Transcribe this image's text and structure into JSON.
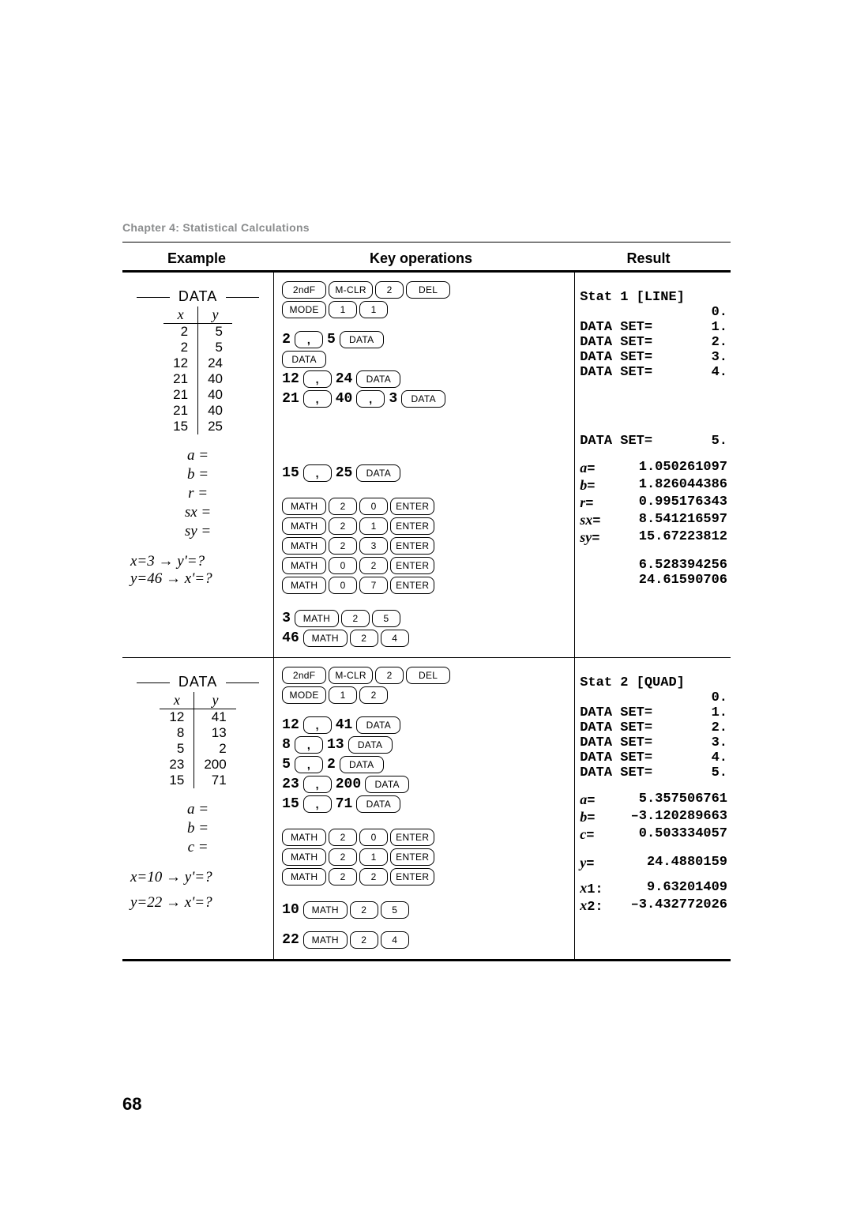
{
  "chapter": "Chapter 4: Statistical Calculations",
  "headers": {
    "example": "Example",
    "ops": "Key operations",
    "result": "Result"
  },
  "page_number": "68",
  "sec1": {
    "data_label": "DATA",
    "table": {
      "xh": "x",
      "yh": "y",
      "rows": [
        {
          "x": "2",
          "y": "5"
        },
        {
          "x": "2",
          "y": "5"
        },
        {
          "x": "12",
          "y": "24"
        },
        {
          "x": "21",
          "y": "40"
        },
        {
          "x": "21",
          "y": "40"
        },
        {
          "x": "21",
          "y": "40"
        },
        {
          "x": "15",
          "y": "25"
        }
      ]
    },
    "eq": {
      "a": "a =",
      "b": "b =",
      "r": "r =",
      "sx": "sx =",
      "sy": "sy ="
    },
    "xy1": "x=3 → y'=?",
    "xy2": "y=46 → x'=?",
    "ops": {
      "clr": [
        "2ndF",
        "M-CLR",
        "2",
        "DEL"
      ],
      "mode": [
        "MODE",
        "1",
        "1"
      ],
      "d1": {
        "pre": "2",
        "seq": [
          ",",
          "5",
          "DATA"
        ]
      },
      "d2": {
        "pre": "",
        "seq": [
          "DATA"
        ]
      },
      "d3": {
        "pre": "12",
        "seq": [
          ",",
          "24",
          "DATA"
        ]
      },
      "d4": {
        "pre": "21",
        "seq": [
          ",",
          "40",
          ",",
          "3",
          "DATA"
        ]
      },
      "d5": {
        "pre": "15",
        "seq": [
          ",",
          "25",
          "DATA"
        ]
      },
      "a": [
        "MATH",
        "2",
        "0",
        "ENTER"
      ],
      "b": [
        "MATH",
        "2",
        "1",
        "ENTER"
      ],
      "r": [
        "MATH",
        "2",
        "3",
        "ENTER"
      ],
      "sx": [
        "MATH",
        "0",
        "2",
        "ENTER"
      ],
      "sy": [
        "MATH",
        "0",
        "7",
        "ENTER"
      ],
      "xy1": {
        "pre": "3",
        "seq": [
          "MATH",
          "2",
          "5"
        ]
      },
      "xy2": {
        "pre": "46",
        "seq": [
          "MATH",
          "2",
          "4"
        ]
      }
    },
    "res": {
      "title": "Stat 1 [LINE]",
      "zero": "0.",
      "rows": [
        {
          "l": "DATA SET=",
          "v": "1."
        },
        {
          "l": "DATA SET=",
          "v": "2."
        },
        {
          "l": "DATA SET=",
          "v": "3."
        },
        {
          "l": "DATA SET=",
          "v": "4."
        }
      ],
      "row5": {
        "l": "DATA SET=",
        "v": "5."
      },
      "a": {
        "l": "a= ",
        "v": "1.050261097"
      },
      "b": {
        "l": "b= ",
        "v": "1.826044386"
      },
      "r": {
        "l": "r= ",
        "v": "0.995176343"
      },
      "sx": {
        "l": "sx=",
        "v": "8.541216597"
      },
      "sy": {
        "l": "sy=",
        "v": "15.67223812"
      },
      "xy1": "6.528394256",
      "xy2": "24.61590706"
    }
  },
  "sec2": {
    "data_label": "DATA",
    "table": {
      "xh": "x",
      "yh": "y",
      "rows": [
        {
          "x": "12",
          "y": "41"
        },
        {
          "x": "8",
          "y": "13"
        },
        {
          "x": "5",
          "y": "2"
        },
        {
          "x": "23",
          "y": "200"
        },
        {
          "x": "15",
          "y": "71"
        }
      ]
    },
    "eq": {
      "a": "a =",
      "b": "b =",
      "c": "c ="
    },
    "xy1": "x=10 → y'=?",
    "xy2": "y=22 → x'=?",
    "ops": {
      "clr": [
        "2ndF",
        "M-CLR",
        "2",
        "DEL"
      ],
      "mode": [
        "MODE",
        "1",
        "2"
      ],
      "d1": {
        "pre": "12",
        "seq": [
          ",",
          "41",
          "DATA"
        ]
      },
      "d2": {
        "pre": "8",
        "seq": [
          ",",
          "13",
          "DATA"
        ]
      },
      "d3": {
        "pre": "5",
        "seq": [
          ",",
          "2",
          "DATA"
        ]
      },
      "d4": {
        "pre": "23",
        "seq": [
          ",",
          "200",
          "DATA"
        ]
      },
      "d5": {
        "pre": "15",
        "seq": [
          ",",
          "71",
          "DATA"
        ]
      },
      "a": [
        "MATH",
        "2",
        "0",
        "ENTER"
      ],
      "b": [
        "MATH",
        "2",
        "1",
        "ENTER"
      ],
      "c": [
        "MATH",
        "2",
        "2",
        "ENTER"
      ],
      "xy1": {
        "pre": "10",
        "seq": [
          "MATH",
          "2",
          "5"
        ]
      },
      "xy2": {
        "pre": "22",
        "seq": [
          "MATH",
          "2",
          "4"
        ]
      }
    },
    "res": {
      "title": "Stat 2 [QUAD]",
      "zero": "0.",
      "rows": [
        {
          "l": "DATA SET=",
          "v": "1."
        },
        {
          "l": "DATA SET=",
          "v": "2."
        },
        {
          "l": "DATA SET=",
          "v": "3."
        },
        {
          "l": "DATA SET=",
          "v": "4."
        },
        {
          "l": "DATA SET=",
          "v": "5."
        }
      ],
      "a": {
        "l": "a= ",
        "v": "5.357506761"
      },
      "b": {
        "l": "b=",
        "v": "–3.120289663"
      },
      "c": {
        "l": "c= ",
        "v": "0.503334057"
      },
      "xy1": {
        "l": "y=  ",
        "v": "24.4880159"
      },
      "xy2a": {
        "l": "x1:  ",
        "v": "9.63201409"
      },
      "xy2b": {
        "l": "x2:",
        "v": "–3.432772026"
      }
    }
  }
}
